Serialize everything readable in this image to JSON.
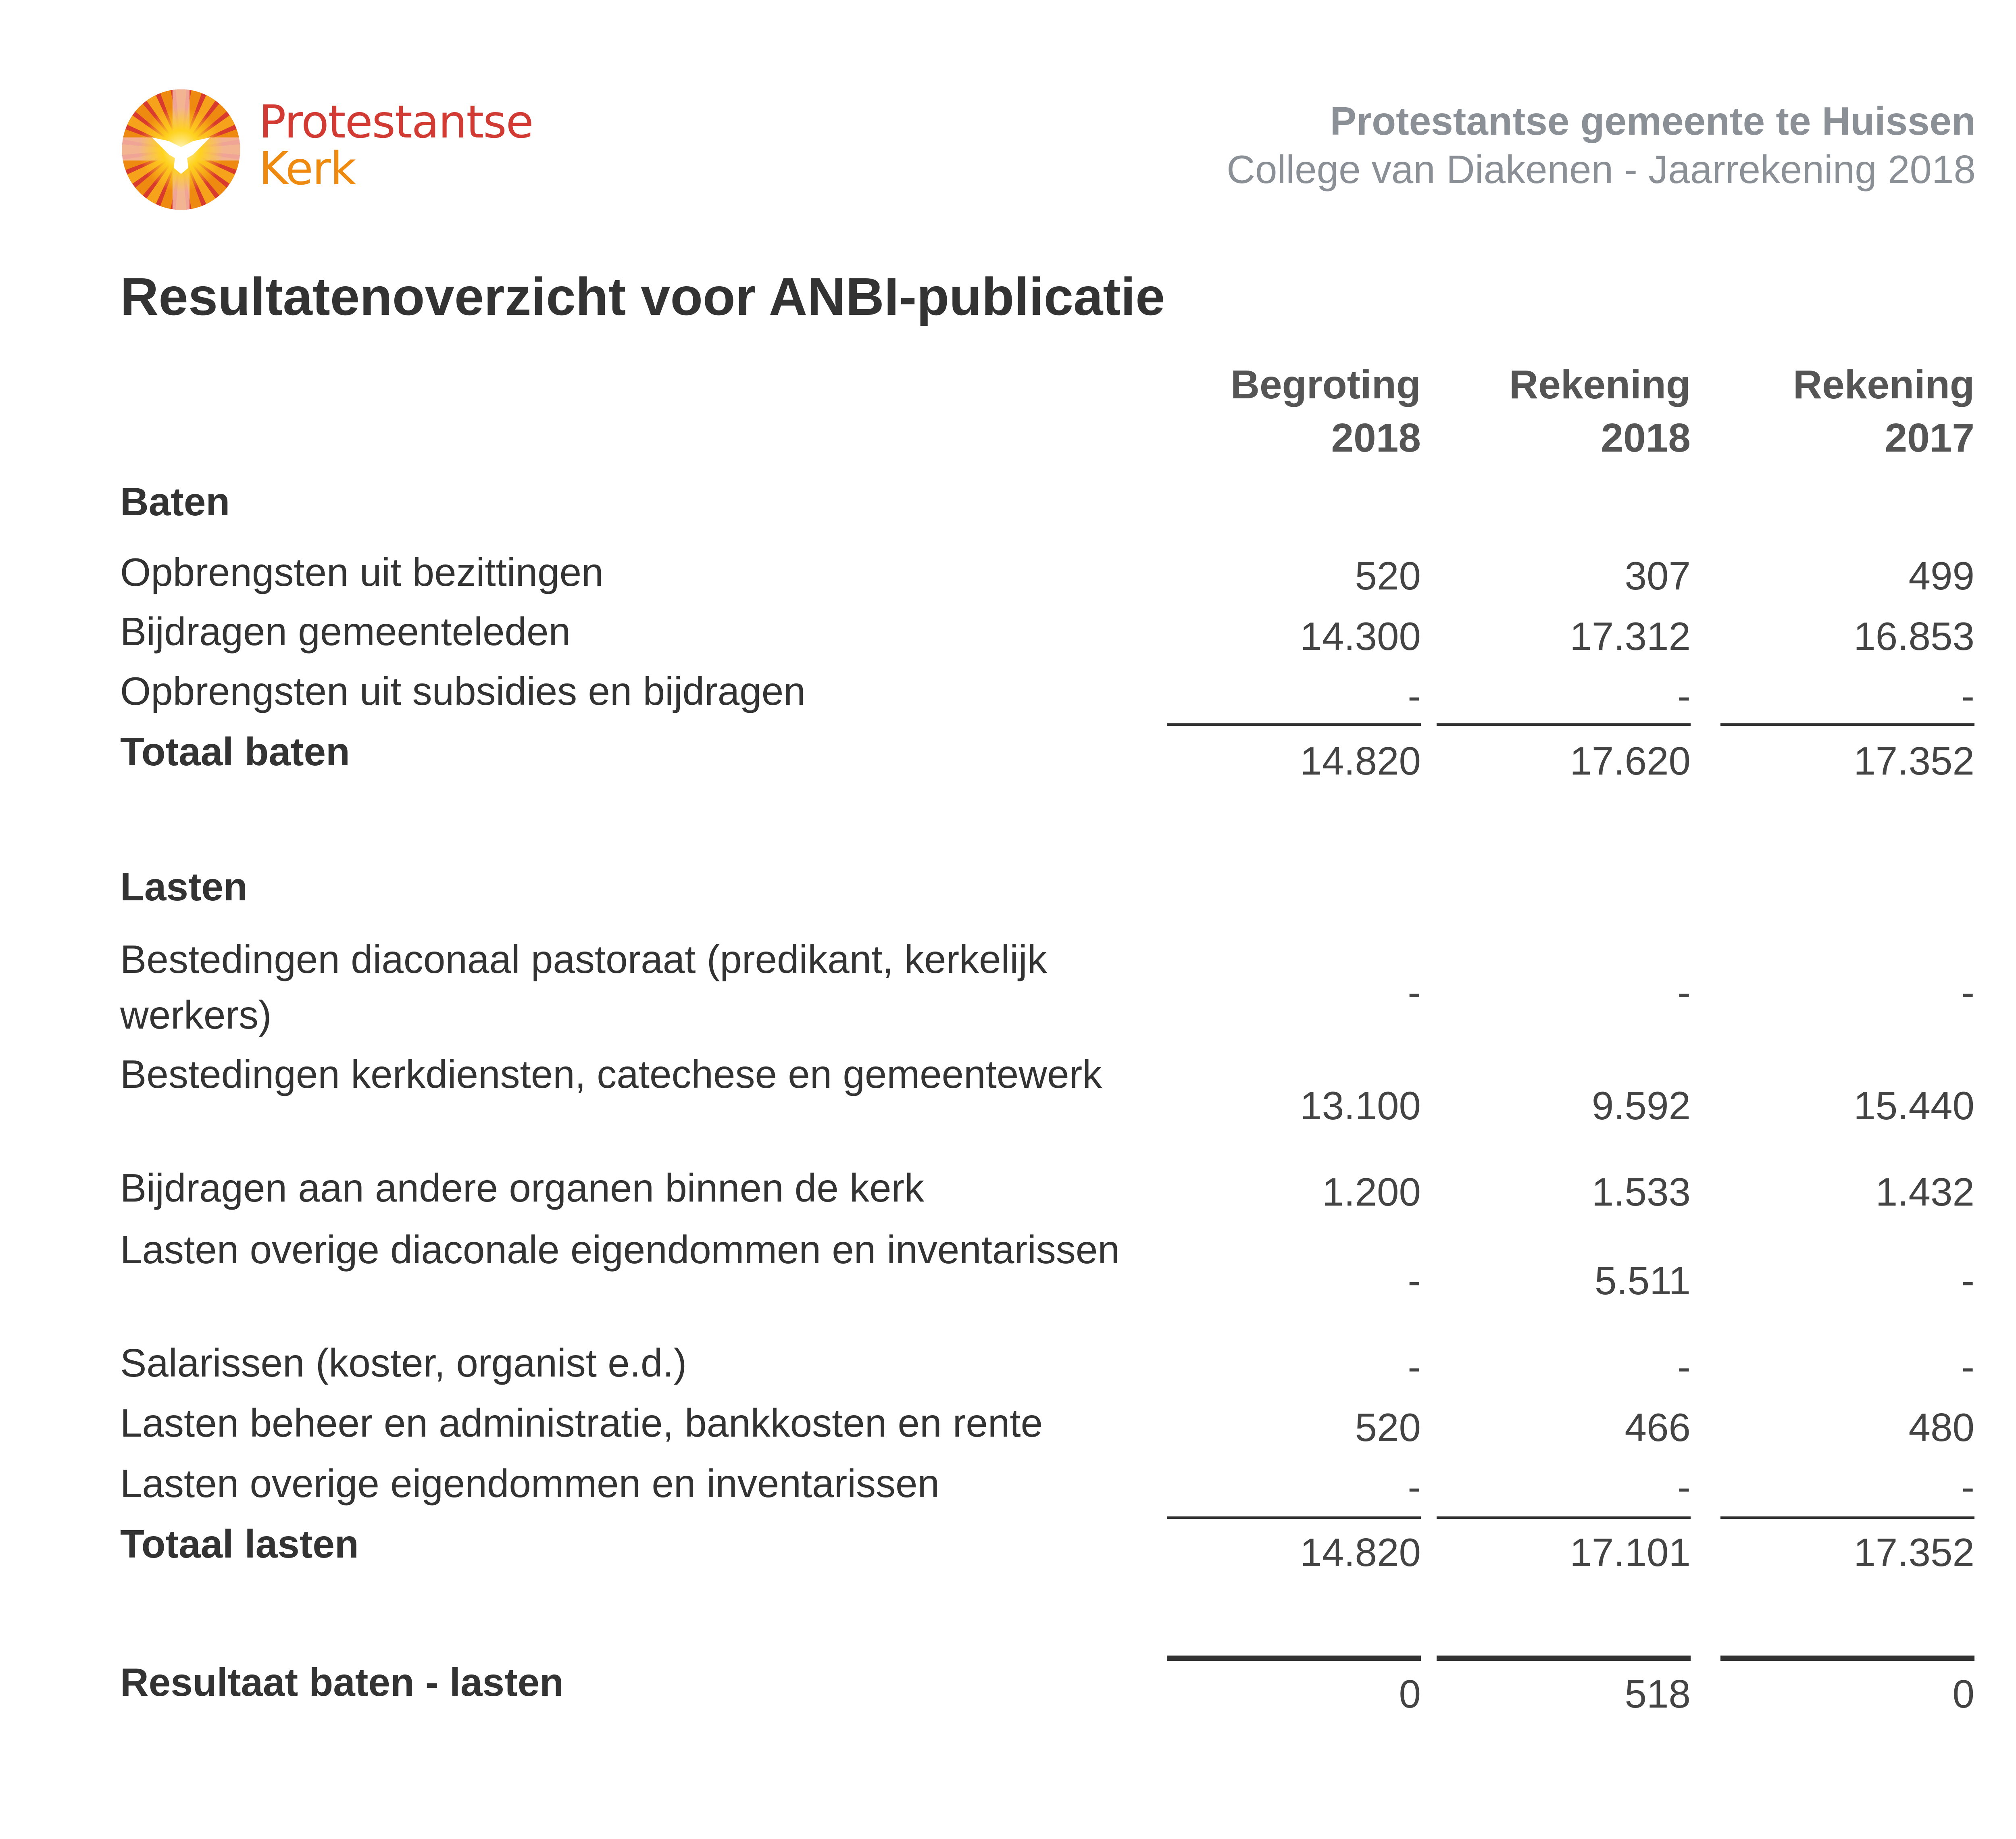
{
  "logo": {
    "line1": "Protestantse",
    "line2": "Kerk",
    "colors": {
      "red": "#d13b33",
      "orange": "#ef8a10",
      "yellow": "#ffd21e",
      "pink": "#f2b7a8"
    }
  },
  "header": {
    "organization": "Protestantse gemeente te Huissen",
    "subtitle": "College van Diakenen - Jaarrekening 2018"
  },
  "title": "Resultatenoverzicht voor ANBI-publicatie",
  "columns": [
    {
      "line1": "Begroting",
      "line2": "2018"
    },
    {
      "line1": "Rekening",
      "line2": "2018"
    },
    {
      "line1": "Rekening",
      "line2": "2017"
    }
  ],
  "rows": [
    {
      "label": "Baten",
      "bold": true,
      "values": []
    },
    {
      "label": "Opbrengsten uit bezittingen",
      "values": [
        "520",
        "307",
        "499"
      ]
    },
    {
      "label": "Bijdragen gemeenteleden",
      "values": [
        "14.300",
        "17.312",
        "16.853"
      ]
    },
    {
      "label": "Opbrengsten uit subsidies en bijdragen",
      "values": [
        "-",
        "-",
        "-"
      ]
    },
    {
      "label": "Totaal baten",
      "bold": true,
      "values": [
        "14.820",
        "17.620",
        "17.352"
      ]
    },
    {
      "label": "Lasten",
      "bold": true,
      "values": []
    },
    {
      "label": "Bestedingen diaconaal pastoraat (predikant, kerkelijk werkers)",
      "values": [
        "-",
        "-",
        "-"
      ]
    },
    {
      "label": "Bestedingen kerkdiensten, catechese en gemeentewerk",
      "values": [
        "13.100",
        "9.592",
        "15.440"
      ]
    },
    {
      "label": "Bijdragen aan andere organen binnen de kerk",
      "values": [
        "1.200",
        "1.533",
        "1.432"
      ]
    },
    {
      "label": "Lasten overige diaconale eigendommen en inventarissen",
      "values": [
        "-",
        "5.511",
        "-"
      ]
    },
    {
      "label": "Salarissen (koster, organist e.d.)",
      "values": [
        "-",
        "-",
        "-"
      ]
    },
    {
      "label": "Lasten beheer en administratie, bankkosten en rente",
      "values": [
        "520",
        "466",
        "480"
      ]
    },
    {
      "label": "Lasten overige eigendommen en inventarissen",
      "values": [
        "-",
        "-",
        "-"
      ]
    },
    {
      "label": "Totaal lasten",
      "bold": true,
      "values": [
        "14.820",
        "17.101",
        "17.352"
      ]
    },
    {
      "label": "Resultaat baten - lasten",
      "bold": true,
      "values": [
        "0",
        "518",
        "0"
      ]
    }
  ]
}
